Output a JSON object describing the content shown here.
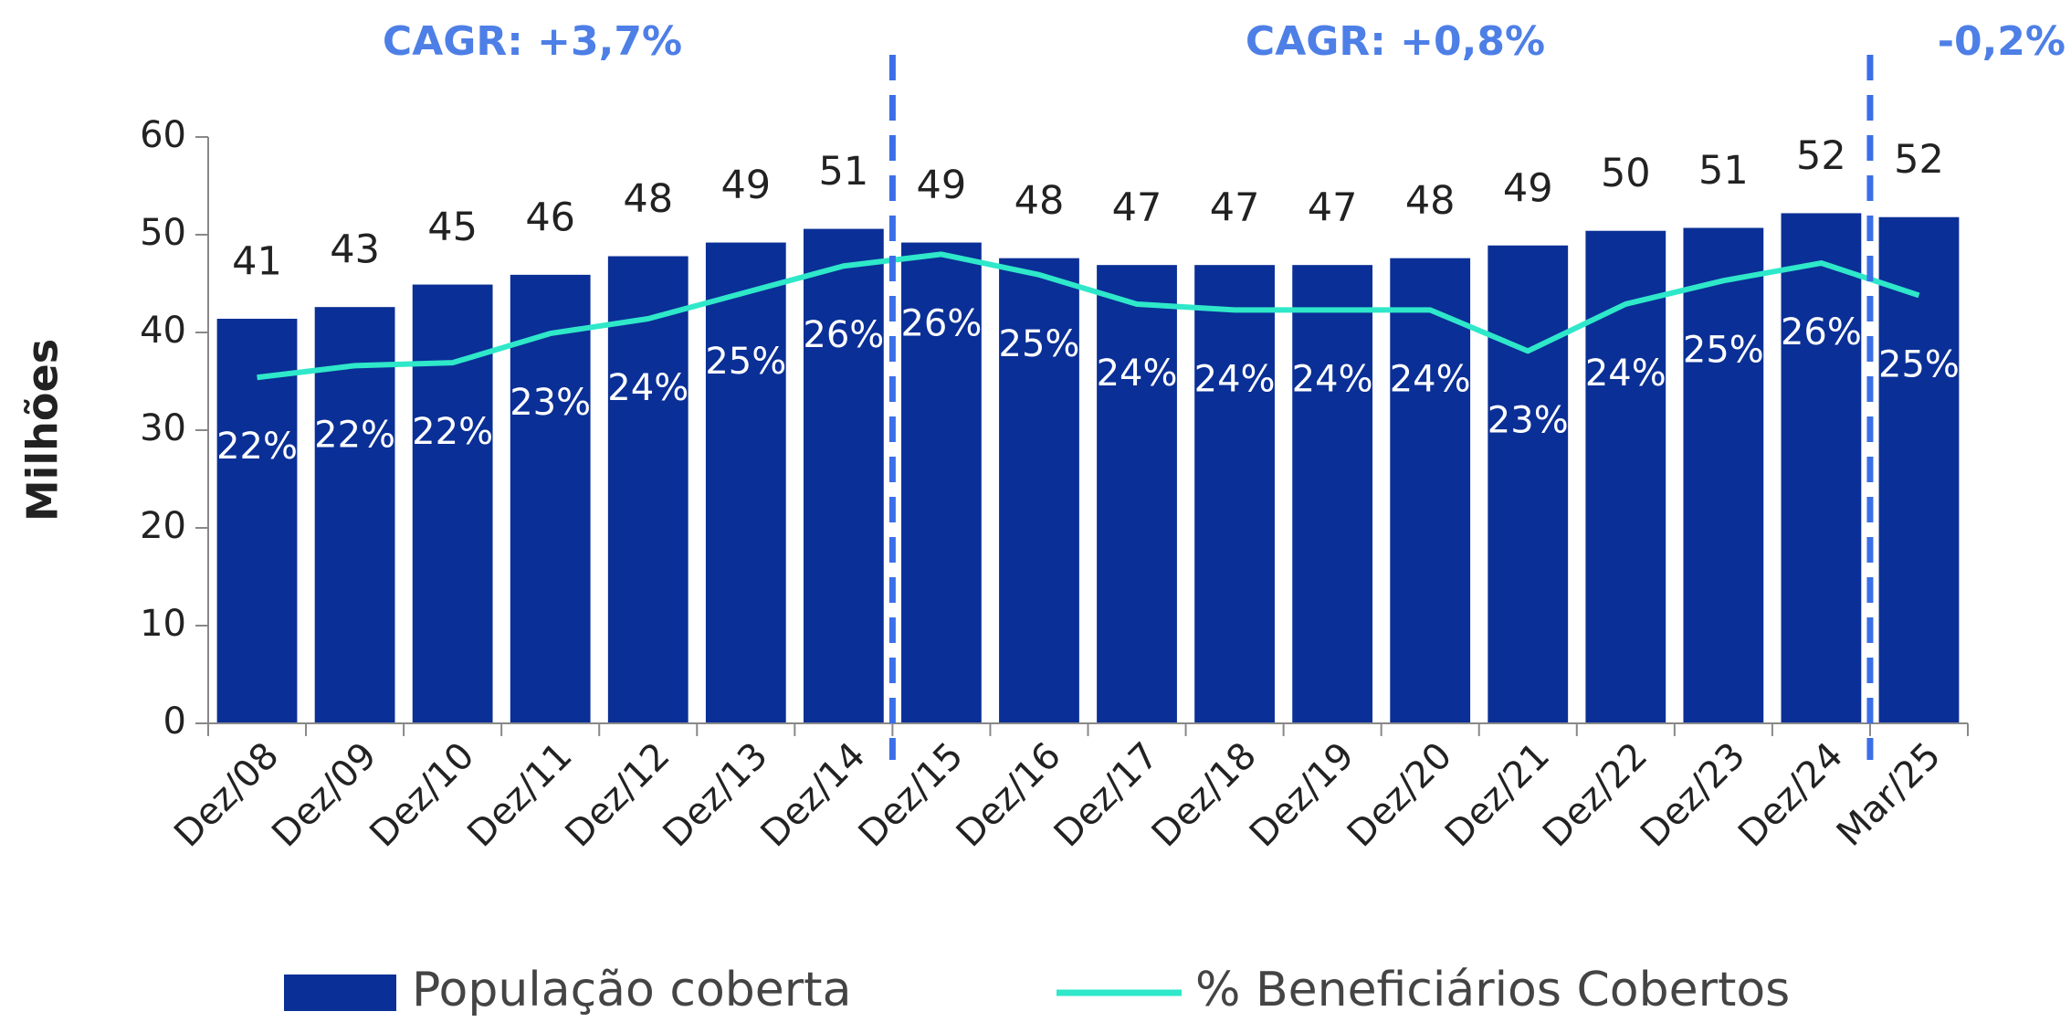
{
  "chart_data": {
    "type": "bar",
    "ylabel": "Milhões",
    "categories": [
      "Dez/08",
      "Dez/09",
      "Dez/10",
      "Dez/11",
      "Dez/12",
      "Dez/13",
      "Dez/14",
      "Dez/15",
      "Dez/16",
      "Dez/17",
      "Dez/18",
      "Dez/19",
      "Dez/20",
      "Dez/21",
      "Dez/22",
      "Dez/23",
      "Dez/24",
      "Mar/25"
    ],
    "series": [
      {
        "name": "População coberta",
        "type": "bar",
        "color": "#0a2f96",
        "values": [
          41.4,
          42.6,
          44.9,
          45.9,
          47.8,
          49.2,
          50.6,
          49.2,
          47.6,
          46.9,
          46.9,
          46.9,
          47.6,
          48.9,
          50.4,
          50.7,
          52.2,
          51.8
        ],
        "value_labels": [
          "41",
          "43",
          "45",
          "46",
          "48",
          "49",
          "51",
          "49",
          "48",
          "47",
          "47",
          "47",
          "48",
          "49",
          "50",
          "51",
          "52",
          "52"
        ]
      },
      {
        "name": "% Beneficiários Cobertos",
        "type": "line",
        "axis": "y2",
        "color": "#2ee8c9",
        "values": [
          21.8,
          22.2,
          22.3,
          23.3,
          23.8,
          24.7,
          25.6,
          26.0,
          25.3,
          24.3,
          24.1,
          24.1,
          24.1,
          22.7,
          24.3,
          25.1,
          25.7,
          24.6
        ],
        "value_labels": [
          "22%",
          "22%",
          "22%",
          "23%",
          "24%",
          "25%",
          "26%",
          "26%",
          "25%",
          "24%",
          "24%",
          "24%",
          "24%",
          "23%",
          "24%",
          "25%",
          "26%",
          "25%"
        ]
      }
    ],
    "ylim": [
      0,
      60
    ],
    "yticks": [
      0,
      10,
      20,
      30,
      40,
      50,
      60
    ],
    "y2lim": [
      10,
      30
    ],
    "annotations": [
      "CAGR: +3,7%",
      "CAGR: +0,8%",
      "-0,2%"
    ],
    "grid": false,
    "legend": "bottom"
  }
}
